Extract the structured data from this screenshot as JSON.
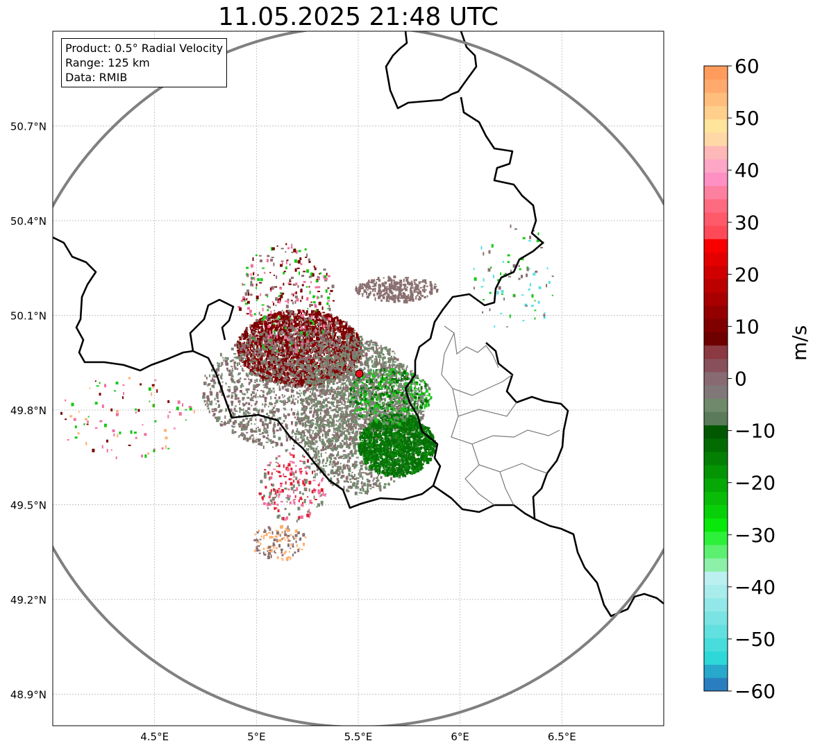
{
  "title": "11.05.2025 21:48 UTC",
  "info_box": {
    "product": "Product: 0.5° Radial Velocity",
    "range": "Range: 125 km",
    "data": "Data: RMIB"
  },
  "axes": {
    "lat_ticks": [
      "50.7°N",
      "50.4°N",
      "50.1°N",
      "49.8°N",
      "49.5°N",
      "49.2°N",
      "48.9°N"
    ],
    "lon_ticks": [
      "4.5°E",
      "5°E",
      "5.5°E",
      "6°E",
      "6.5°E"
    ],
    "lon_range": [
      4,
      7
    ],
    "lat_range": [
      48.8,
      51.0
    ],
    "grid": true
  },
  "radar_site": {
    "lon": 5.505,
    "lat": 49.915,
    "color": "#e8101a"
  },
  "colorbar": {
    "unit": "m/s",
    "range": [
      -60,
      60
    ],
    "tick_labels": [
      "60",
      "50",
      "40",
      "30",
      "20",
      "10",
      "0",
      "−10",
      "−20",
      "−30",
      "−40",
      "−50",
      "−60"
    ],
    "bands": [
      "#2a7ec0",
      "#28a8cc",
      "#2ed8d8",
      "#48dcdc",
      "#62e0e0",
      "#7ae4e4",
      "#92e8e8",
      "#a8ecec",
      "#bcf0f0",
      "#8cf0a8",
      "#5cf070",
      "#2cf03a",
      "#08e80a",
      "#08d008",
      "#08bc08",
      "#06a806",
      "#049404",
      "#038003",
      "#026c02",
      "#015801",
      "#5a7a5a",
      "#6e8a6a",
      "#807878",
      "#886a72",
      "#88505a",
      "#8a3a40",
      "#6e0000",
      "#800000",
      "#940000",
      "#a80000",
      "#bc0000",
      "#d00000",
      "#e40000",
      "#f80000",
      "#fe4a58",
      "#fe5a6a",
      "#fe6a80",
      "#fe80a0",
      "#fe90c4",
      "#fea6c6",
      "#ffb8b8",
      "#ffd8a8",
      "#ffe49c",
      "#ffd08c",
      "#ffbe7c",
      "#ffaa6c",
      "#ff9c5c"
    ]
  },
  "range_ring_color": "#808080",
  "velocity_colors": {
    "inbound_strong": "#067006",
    "inbound": "#18c818",
    "neutral": "#7a8a74",
    "neutral_pink": "#8a7070",
    "outbound": "#7a0000",
    "outbound_light": "#e02030",
    "pink": "#f070a0",
    "cyan": "#58e0e0",
    "orange": "#ffb070"
  }
}
